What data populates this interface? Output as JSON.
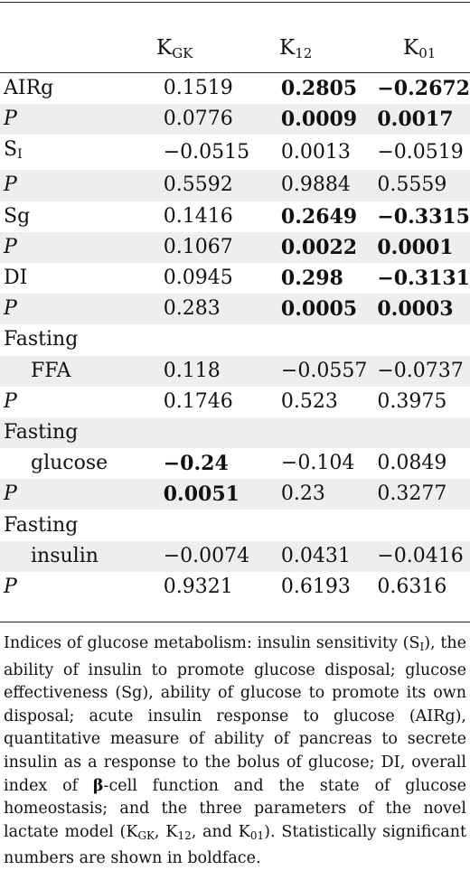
{
  "columns": {
    "k_gk": {
      "base": "K",
      "sub": "GK"
    },
    "k_12": {
      "base": "K",
      "sub": "12"
    },
    "k_01": {
      "base": "K",
      "sub": "01"
    }
  },
  "rows": [
    {
      "label": "AIRg",
      "v1": "0.1519",
      "v2": "0.2805",
      "v3": "−0.2672",
      "bold": [
        false,
        true,
        true
      ]
    },
    {
      "label": "P",
      "v1": "0.0776",
      "v2": "0.0009",
      "v3": "0.0017",
      "bold": [
        false,
        true,
        true
      ]
    },
    {
      "label_base": "S",
      "label_sub": "I",
      "v1": "−0.0515",
      "v2": "0.0013",
      "v3": "−0.0519",
      "bold": [
        false,
        false,
        false
      ]
    },
    {
      "label": "P",
      "v1": "0.5592",
      "v2": "0.9884",
      "v3": "0.5559",
      "bold": [
        false,
        false,
        false
      ]
    },
    {
      "label": "Sg",
      "v1": "0.1416",
      "v2": "0.2649",
      "v3": "−0.3315",
      "bold": [
        false,
        true,
        true
      ]
    },
    {
      "label": "P",
      "v1": "0.1067",
      "v2": "0.0022",
      "v3": "0.0001",
      "bold": [
        false,
        true,
        true
      ]
    },
    {
      "label": "DI",
      "v1": "0.0945",
      "v2": "0.298",
      "v3": "−0.3131",
      "bold": [
        false,
        true,
        true
      ]
    },
    {
      "label": "P",
      "v1": "0.283",
      "v2": "0.0005",
      "v3": "0.0003",
      "bold": [
        false,
        true,
        true
      ]
    },
    {
      "label": "Fasting",
      "v1": "",
      "v2": "",
      "v3": "",
      "bold": [
        false,
        false,
        false
      ]
    },
    {
      "label": "FFA",
      "v1": "0.118",
      "v2": "−0.0557",
      "v3": "−0.0737",
      "bold": [
        false,
        false,
        false
      ]
    },
    {
      "label": "P",
      "v1": "0.1746",
      "v2": "0.523",
      "v3": "0.3975",
      "bold": [
        false,
        false,
        false
      ]
    },
    {
      "label": "Fasting",
      "v1": "",
      "v2": "",
      "v3": "",
      "bold": [
        false,
        false,
        false
      ]
    },
    {
      "label": "glucose",
      "v1": "−0.24",
      "v2": "−0.104",
      "v3": "0.0849",
      "bold": [
        true,
        false,
        false
      ]
    },
    {
      "label": "P",
      "v1": "0.0051",
      "v2": "0.23",
      "v3": "0.3277",
      "bold": [
        true,
        false,
        false
      ]
    },
    {
      "label": "Fasting",
      "v1": "",
      "v2": "",
      "v3": "",
      "bold": [
        false,
        false,
        false
      ]
    },
    {
      "label": "insulin",
      "v1": "−0.0074",
      "v2": "0.0431",
      "v3": "−0.0416",
      "bold": [
        false,
        false,
        false
      ]
    },
    {
      "label": "P",
      "v1": "0.9321",
      "v2": "0.6193",
      "v3": "0.6316",
      "bold": [
        false,
        false,
        false
      ]
    }
  ],
  "footnote": {
    "p1": "Indices of glucose metabolism: insulin sensitivity (S",
    "p1_sub": "I",
    "p2": "), the ability of insulin to promote glucose disposal; glucose effectiveness (Sg), ability of glucose to promote its own disposal; acute insulin response to glucose (AIRg), quantitative measure of ability of pancreas to secrete insulin as a response to the bolus of glucose; DI, overall index of ",
    "beta": "β",
    "p3": "-cell function and the state of glucose homeostasis; and the three parameters of the novel lactate model (K",
    "sub_gk": "GK",
    "p4": ", K",
    "sub_12": "12",
    "p5": ", and K",
    "sub_01": "01",
    "p6": "). Statistically significant numbers are shown in boldface."
  }
}
